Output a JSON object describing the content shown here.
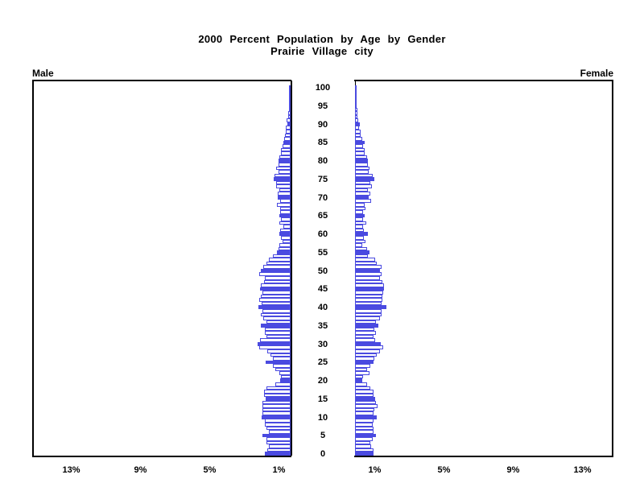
{
  "title": {
    "line1": "2000 Percent Population by Age by Gender",
    "line2": "Prairie Village city"
  },
  "panels": {
    "male_label": "Male",
    "female_label": "Female"
  },
  "colors": {
    "bar_accent": "#4a4ae0",
    "bar_empty_fill": "#ffffff",
    "axis": "#000000"
  },
  "chart_data": {
    "type": "bar",
    "subtype": "population-pyramid",
    "title": "2000 Percent Population by Age by Gender",
    "subtitle": "Prairie Village city",
    "orientation": "horizontal back-to-back, male left panel, female right panel",
    "age_axis": {
      "min": 0,
      "max": 100,
      "tick_step": 5,
      "ticks": [
        0,
        5,
        10,
        15,
        20,
        25,
        30,
        35,
        40,
        45,
        50,
        55,
        60,
        65,
        70,
        75,
        80,
        85,
        90,
        95,
        100
      ]
    },
    "x_axis": {
      "unit": "percent of population",
      "tick_labels": [
        "1%",
        "5%",
        "9%",
        "13%"
      ],
      "tick_values": [
        1,
        5,
        9,
        13
      ],
      "range": [
        0,
        15.3
      ],
      "grid": false
    },
    "legend": "none",
    "bar_style": "one bar per single year of age; ages divisible by 5 are solid accent blue, others white with blue outline",
    "series": [
      {
        "name": "Male",
        "side": "left",
        "values": [
          1.52,
          1.37,
          1.29,
          1.44,
          1.44,
          1.65,
          1.29,
          1.44,
          1.52,
          1.52,
          1.71,
          1.65,
          1.65,
          1.65,
          1.68,
          1.48,
          1.56,
          1.56,
          1.44,
          0.92,
          0.62,
          0.57,
          0.68,
          0.89,
          1.05,
          1.48,
          1.05,
          1.2,
          1.38,
          1.84,
          1.95,
          1.8,
          1.44,
          1.52,
          1.52,
          1.76,
          1.44,
          1.6,
          1.76,
          1.68,
          1.9,
          1.71,
          1.84,
          1.76,
          1.68,
          1.81,
          1.76,
          1.56,
          1.52,
          1.84,
          1.76,
          1.6,
          1.45,
          1.29,
          1.05,
          0.79,
          0.73,
          0.66,
          0.49,
          0.57,
          0.69,
          0.62,
          0.45,
          0.66,
          0.57,
          0.67,
          0.62,
          0.62,
          0.81,
          0.62,
          0.78,
          0.78,
          0.66,
          0.84,
          0.84,
          1.0,
          0.95,
          0.73,
          0.84,
          0.73,
          0.73,
          0.67,
          0.57,
          0.57,
          0.48,
          0.45,
          0.4,
          0.35,
          0.29,
          0.29,
          0.19,
          0.22,
          0.16,
          0.13,
          0.11,
          0.11,
          0.1,
          0.1,
          0.06,
          0.05,
          0.03
        ]
      },
      {
        "name": "Female",
        "side": "right",
        "values": [
          1.08,
          1.08,
          0.95,
          0.92,
          1.05,
          1.24,
          1.08,
          1.11,
          1.05,
          1.11,
          1.27,
          1.08,
          1.16,
          1.32,
          1.24,
          1.21,
          1.11,
          1.08,
          0.89,
          0.73,
          0.41,
          0.48,
          0.84,
          0.73,
          0.92,
          1.08,
          1.16,
          1.29,
          1.48,
          1.68,
          1.52,
          1.21,
          1.08,
          1.24,
          1.16,
          1.37,
          1.24,
          1.48,
          1.56,
          1.55,
          1.84,
          1.55,
          1.6,
          1.62,
          1.67,
          1.7,
          1.71,
          1.6,
          1.48,
          1.56,
          1.48,
          1.55,
          1.3,
          1.17,
          0.78,
          0.86,
          0.7,
          0.44,
          0.62,
          0.52,
          0.76,
          0.52,
          0.49,
          0.68,
          0.49,
          0.59,
          0.49,
          0.62,
          0.59,
          0.95,
          0.81,
          0.92,
          0.76,
          1.0,
          0.9,
          1.15,
          1.03,
          0.81,
          0.87,
          0.78,
          0.78,
          0.73,
          0.56,
          0.56,
          0.48,
          0.56,
          0.44,
          0.35,
          0.32,
          0.26,
          0.29,
          0.19,
          0.16,
          0.16,
          0.13,
          0.1,
          0.1,
          0.1,
          0.08,
          0.08,
          0.05
        ]
      }
    ]
  }
}
